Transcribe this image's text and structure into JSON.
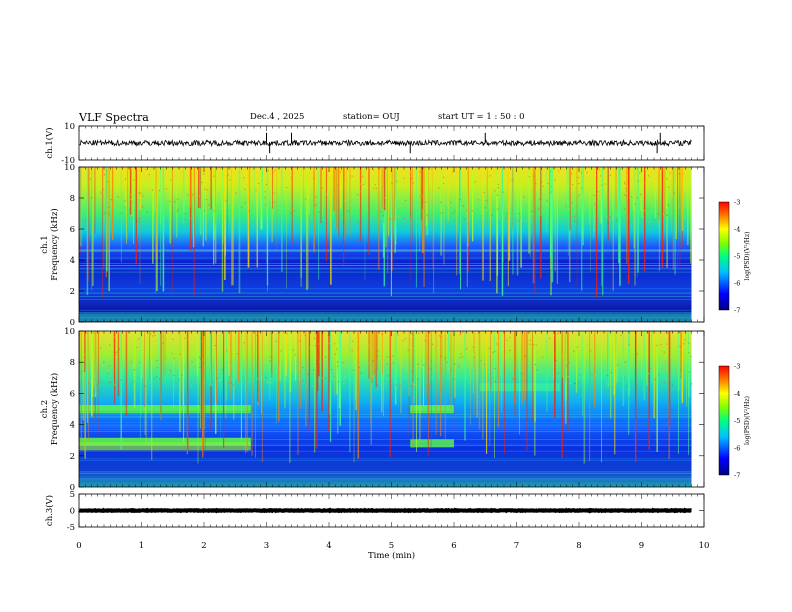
{
  "header": {
    "title": "VLF Spectra",
    "date": "Dec.4 , 2025",
    "station": "station= OUJ",
    "start_time": "start UT = 1 : 50 : 0"
  },
  "chart_data": [
    {
      "type": "line",
      "panel": "ch1-waveform",
      "ylabel": "ch.1(V)",
      "ylim": [
        -10,
        10
      ],
      "yticks": [
        "10",
        "-10"
      ],
      "xlim": [
        0,
        10
      ],
      "baseline_value": 0,
      "spikes_x": [
        3.0,
        3.05,
        3.4,
        5.3,
        6.5,
        9.25,
        9.3
      ]
    },
    {
      "type": "heatmap",
      "panel": "ch1-spectrogram",
      "ylabel": "ch.1\nFrequency (kHz)",
      "ylim": [
        0,
        10
      ],
      "yticks": [
        "0",
        "2",
        "4",
        "6",
        "8",
        "10"
      ],
      "xlim": [
        0,
        9.8
      ],
      "colorbar": {
        "label": "log(PSD)(V²/Hz)",
        "range": [
          -7,
          -3
        ],
        "ticks": [
          "-3",
          "-4",
          "-5",
          "-6",
          "-7"
        ]
      }
    },
    {
      "type": "heatmap",
      "panel": "ch2-spectrogram",
      "ylabel": "ch.2\nFrequency (kHz)",
      "ylim": [
        0,
        10
      ],
      "yticks": [
        "0",
        "2",
        "4",
        "6",
        "8",
        "10"
      ],
      "xlim": [
        0,
        9.8
      ],
      "colorbar": {
        "label": "log(PSD)(V²/Hz)",
        "range": [
          -7,
          -3
        ],
        "ticks": [
          "-3",
          "-4",
          "-5",
          "-6",
          "-7"
        ]
      }
    },
    {
      "type": "line",
      "panel": "ch3-waveform",
      "ylabel": "ch.3(V)",
      "ylim": [
        -5,
        5
      ],
      "yticks": [
        "5",
        "0",
        "-5"
      ],
      "xlim": [
        0,
        10
      ],
      "baseline_value": 0
    }
  ],
  "xaxis": {
    "label": "Time (min)",
    "ticks": [
      "0",
      "1",
      "2",
      "3",
      "4",
      "5",
      "6",
      "7",
      "8",
      "9",
      "10"
    ]
  },
  "colors": {
    "colormap": [
      "#00007f",
      "#0000ff",
      "#00bfff",
      "#00ff7f",
      "#7fff00",
      "#ffff00",
      "#ff7f00",
      "#ff0000"
    ]
  }
}
